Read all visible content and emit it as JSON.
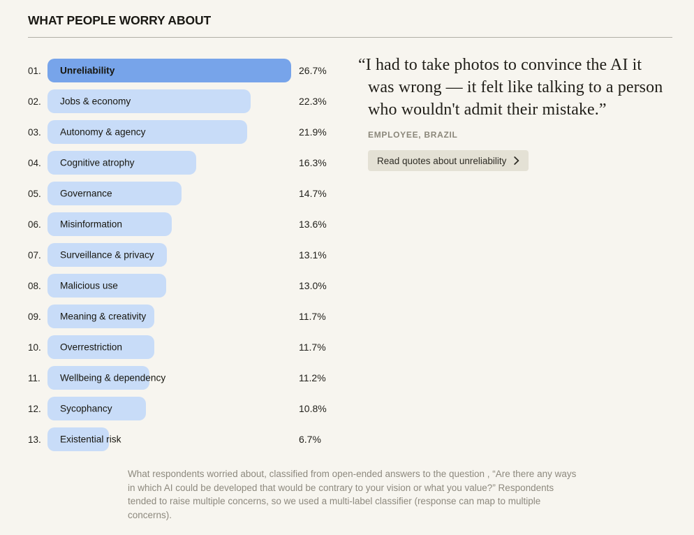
{
  "header": {
    "title": "WHAT PEOPLE WORRY ABOUT"
  },
  "chart_data": {
    "type": "bar",
    "orientation": "horizontal",
    "title": "WHAT PEOPLE WORRY ABOUT",
    "value_format": "percent",
    "max_value": 26.7,
    "axis_visible": false,
    "items": [
      {
        "rank": "01.",
        "label": "Unreliability",
        "value": 26.7,
        "display": "26.7%",
        "highlighted": true
      },
      {
        "rank": "02.",
        "label": "Jobs & economy",
        "value": 22.3,
        "display": "22.3%",
        "highlighted": false
      },
      {
        "rank": "03.",
        "label": "Autonomy & agency",
        "value": 21.9,
        "display": "21.9%",
        "highlighted": false
      },
      {
        "rank": "04.",
        "label": "Cognitive atrophy",
        "value": 16.3,
        "display": "16.3%",
        "highlighted": false
      },
      {
        "rank": "05.",
        "label": "Governance",
        "value": 14.7,
        "display": "14.7%",
        "highlighted": false
      },
      {
        "rank": "06.",
        "label": "Misinformation",
        "value": 13.6,
        "display": "13.6%",
        "highlighted": false
      },
      {
        "rank": "07.",
        "label": "Surveillance & privacy",
        "value": 13.1,
        "display": "13.1%",
        "highlighted": false
      },
      {
        "rank": "08.",
        "label": "Malicious use",
        "value": 13.0,
        "display": "13.0%",
        "highlighted": false
      },
      {
        "rank": "09.",
        "label": "Meaning & creativity",
        "value": 11.7,
        "display": "11.7%",
        "highlighted": false
      },
      {
        "rank": "10.",
        "label": "Overrestriction",
        "value": 11.7,
        "display": "11.7%",
        "highlighted": false
      },
      {
        "rank": "11.",
        "label": "Wellbeing & dependency",
        "value": 11.2,
        "display": "11.2%",
        "highlighted": false
      },
      {
        "rank": "12.",
        "label": "Sycophancy",
        "value": 10.8,
        "display": "10.8%",
        "highlighted": false
      },
      {
        "rank": "13.",
        "label": "Existential risk",
        "value": 6.7,
        "display": "6.7%",
        "highlighted": false
      }
    ]
  },
  "quote": {
    "text": "“I had to take photos to convince the AI it was wrong — it felt like talking to a person who wouldn't admit their mistake.”",
    "attribution": "EMPLOYEE, BRAZIL",
    "button_label": "Read quotes about unreliability",
    "button_icon": "chevron-right"
  },
  "footnote": "What respondents worried about, classified from open-ended answers to the question , “Are there any ways in which AI could be developed that would be contrary to your vision or what you value?” Respondents tended to raise multiple concerns, so we used a multi-label classifier (response can map to multiple concerns).",
  "colors": {
    "background": "#f7f5ef",
    "bar": "#c8dcf8",
    "highlight_bar": "#77a4ea",
    "ink": "#1c1b17",
    "grey": "#8b877a",
    "divider": "#b1aea6",
    "button_background": "#e4e1d5"
  }
}
